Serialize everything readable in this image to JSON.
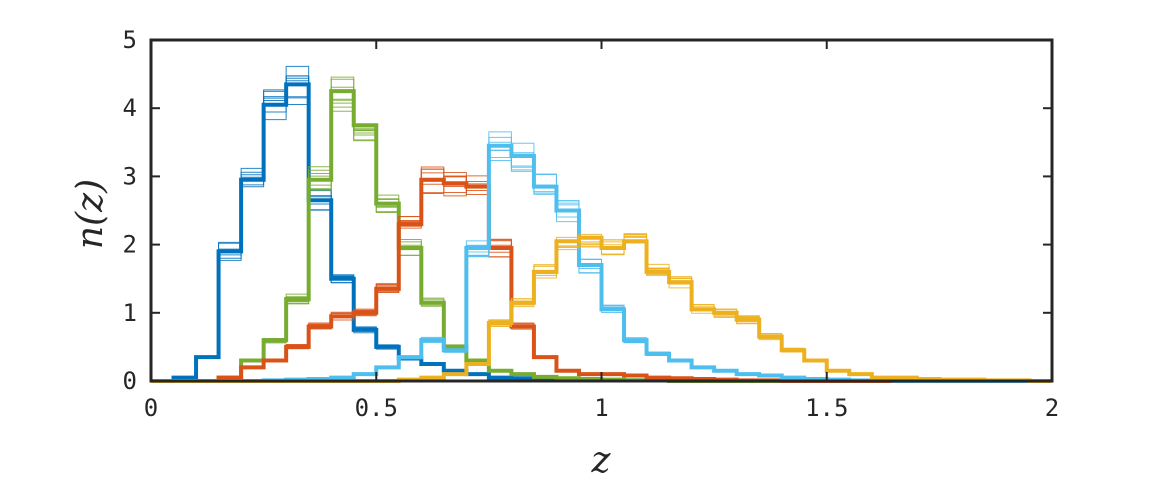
{
  "chart_data": {
    "type": "line",
    "subtype": "step-histogram",
    "title": "",
    "xlabel": "z",
    "ylabel": "n(z)",
    "xlim": [
      0,
      2
    ],
    "ylim": [
      0,
      5
    ],
    "xticks": [
      "0",
      "0.5",
      "1",
      "1.5",
      "2"
    ],
    "yticks": [
      "0",
      "1",
      "2",
      "3",
      "4",
      "5"
    ],
    "grid": false,
    "legend": "none",
    "bin_width": 0.05,
    "x": [
      0.0,
      0.05,
      0.1,
      0.15,
      0.2,
      0.25,
      0.3,
      0.35,
      0.4,
      0.45,
      0.5,
      0.55,
      0.6,
      0.65,
      0.7,
      0.75,
      0.8,
      0.85,
      0.9,
      0.95,
      1.0,
      1.05,
      1.1,
      1.15,
      1.2,
      1.25,
      1.3,
      1.35,
      1.4,
      1.45,
      1.5,
      1.55,
      1.6,
      1.65,
      1.7,
      1.75,
      1.8,
      1.85,
      1.9,
      1.95
    ],
    "series": [
      {
        "color": "#0072BD",
        "values": [
          0.0,
          0.05,
          0.35,
          1.9,
          2.95,
          4.05,
          4.35,
          2.65,
          1.5,
          0.75,
          0.5,
          0.33,
          0.25,
          0.15,
          0.1,
          0.05,
          0.04,
          0.03,
          0.02,
          0.02,
          0.01,
          0.01,
          0.01,
          0.0,
          0.0,
          0.0,
          0.0,
          0.0,
          0.0,
          0.0,
          0.0,
          0.0,
          0.0,
          0.0,
          0.0,
          0.0,
          0.0,
          0.0,
          0.0,
          0.0
        ]
      },
      {
        "color": "#77AC30",
        "values": [
          0.0,
          0.0,
          0.0,
          0.05,
          0.3,
          0.6,
          1.2,
          2.95,
          4.25,
          3.75,
          2.6,
          1.95,
          1.15,
          0.5,
          0.3,
          0.15,
          0.1,
          0.06,
          0.04,
          0.03,
          0.02,
          0.01,
          0.01,
          0.0,
          0.0,
          0.0,
          0.0,
          0.0,
          0.0,
          0.0,
          0.0,
          0.0,
          0.0,
          0.0,
          0.0,
          0.0,
          0.0,
          0.0,
          0.0,
          0.0
        ]
      },
      {
        "color": "#D95319",
        "values": [
          0.0,
          0.0,
          0.0,
          0.05,
          0.2,
          0.3,
          0.5,
          0.8,
          0.95,
          1.0,
          1.35,
          2.3,
          2.95,
          2.9,
          2.85,
          1.95,
          0.8,
          0.35,
          0.15,
          0.1,
          0.1,
          0.08,
          0.05,
          0.04,
          0.03,
          0.02,
          0.01,
          0.01,
          0.0,
          0.0,
          0.0,
          0.0,
          0.0,
          0.0,
          0.0,
          0.0,
          0.0,
          0.0,
          0.0,
          0.0
        ]
      },
      {
        "color": "#4DBEEE",
        "values": [
          0.0,
          0.0,
          0.0,
          0.0,
          0.0,
          0.01,
          0.02,
          0.03,
          0.05,
          0.1,
          0.2,
          0.35,
          0.6,
          0.45,
          1.95,
          3.45,
          3.3,
          2.85,
          2.5,
          1.7,
          1.05,
          0.6,
          0.4,
          0.3,
          0.2,
          0.15,
          0.1,
          0.08,
          0.05,
          0.03,
          0.02,
          0.01,
          0.01,
          0.0,
          0.0,
          0.0,
          0.0,
          0.0,
          0.0,
          0.0
        ]
      },
      {
        "color": "#EDB120",
        "values": [
          0.0,
          0.0,
          0.0,
          0.0,
          0.0,
          0.0,
          0.0,
          0.0,
          0.0,
          0.0,
          0.0,
          0.02,
          0.05,
          0.1,
          0.25,
          0.85,
          1.15,
          1.6,
          2.05,
          2.1,
          1.95,
          2.05,
          1.6,
          1.45,
          1.05,
          1.0,
          0.9,
          0.65,
          0.45,
          0.3,
          0.15,
          0.1,
          0.05,
          0.05,
          0.03,
          0.02,
          0.02,
          0.01,
          0.01,
          0.0
        ]
      }
    ]
  },
  "colors": {
    "axis": "#262626",
    "background": "#ffffff"
  }
}
